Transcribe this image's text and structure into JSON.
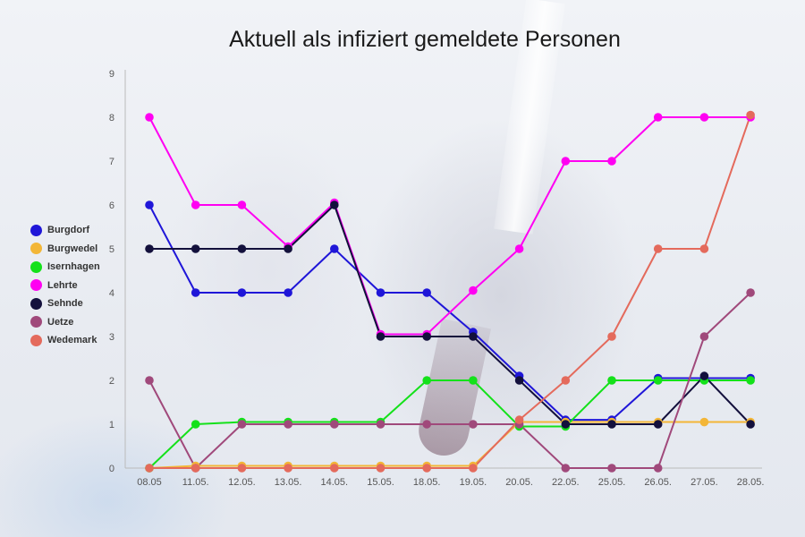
{
  "chart_data": {
    "type": "line",
    "title": "Aktuell als infiziert gemeldete Personen",
    "categories": [
      "08.05",
      "11.05.",
      "12.05.",
      "13.05.",
      "14.05.",
      "15.05.",
      "18.05.",
      "19.05.",
      "20.05.",
      "22.05.",
      "25.05.",
      "26.05.",
      "27.05.",
      "28.05."
    ],
    "ylim": [
      0,
      9
    ],
    "yticks": [
      "0",
      "1",
      "2",
      "3",
      "4",
      "5",
      "6",
      "7",
      "8",
      "9"
    ],
    "grid": false,
    "legend_position": "left",
    "series": [
      {
        "name": "Burgdorf",
        "color": "#1f16d8",
        "values": [
          6,
          4,
          4,
          4,
          5,
          4,
          4,
          3.1,
          2.1,
          1.1,
          1.1,
          2.05,
          2.05,
          2.05
        ]
      },
      {
        "name": "Burgwedel",
        "color": "#f3b637",
        "values": [
          0,
          0.05,
          0.05,
          0.05,
          0.05,
          0.05,
          0.05,
          0.05,
          1.05,
          1.05,
          1.05,
          1.05,
          1.05,
          1.05
        ]
      },
      {
        "name": "Isernhagen",
        "color": "#14e11a",
        "values": [
          0,
          1,
          1.05,
          1.05,
          1.05,
          1.05,
          2,
          2,
          0.95,
          0.95,
          2,
          2,
          2,
          2
        ]
      },
      {
        "name": "Lehrte",
        "color": "#ff00f2",
        "values": [
          8,
          6,
          6,
          5.05,
          6.05,
          3.05,
          3.05,
          4.05,
          5,
          7,
          7,
          8,
          8,
          8
        ]
      },
      {
        "name": "Sehnde",
        "color": "#13103c",
        "values": [
          5,
          5,
          5,
          5,
          6,
          3,
          3,
          3,
          2,
          1,
          1,
          1,
          2.1,
          1
        ]
      },
      {
        "name": "Uetze",
        "color": "#a0497b",
        "values": [
          2,
          0,
          1,
          1,
          1,
          1,
          1,
          1,
          1,
          0,
          0,
          0,
          3,
          4
        ]
      },
      {
        "name": "Wedemark",
        "color": "#e46a5c",
        "values": [
          0,
          0,
          0,
          0,
          0,
          0,
          0,
          0,
          1.1,
          2,
          3,
          5,
          5,
          8.05
        ]
      }
    ]
  }
}
